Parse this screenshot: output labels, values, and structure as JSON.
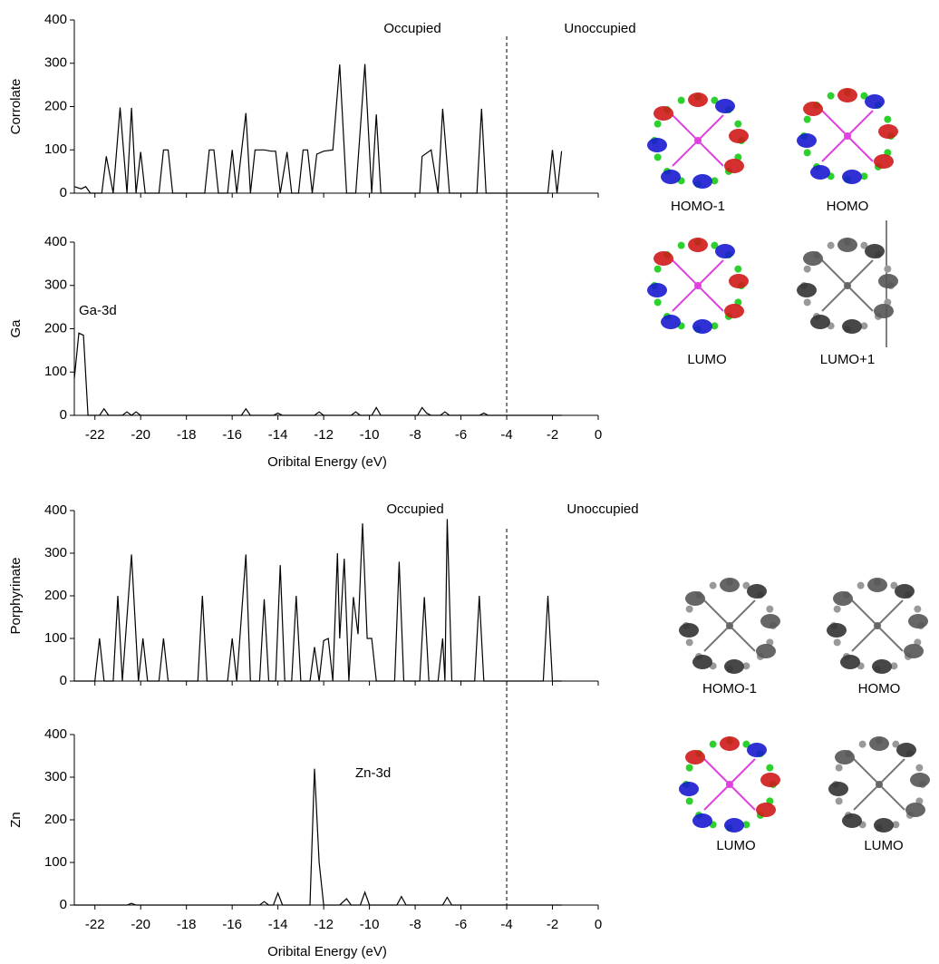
{
  "chart_data": [
    {
      "type": "line",
      "ylabel": "Corrolate",
      "annotations": [
        "Occupied",
        "Unoccupied"
      ],
      "color": "#000000",
      "vline": -4,
      "xlim": [
        -22.9,
        0
      ],
      "xticks": [
        -22,
        -20,
        -18,
        -16,
        -14,
        -12,
        -10,
        -8,
        -6,
        -4,
        -2,
        0
      ],
      "show_xtick_labels": false,
      "ylim": [
        0,
        400
      ],
      "yticks": [
        0,
        100,
        200,
        300,
        400
      ],
      "x": [
        -22.9,
        -22.6,
        -22.4,
        -22.2,
        -21.7,
        -21.5,
        -21.2,
        -20.9,
        -20.6,
        -20.4,
        -20.2,
        -20.0,
        -19.8,
        -19.2,
        -19.0,
        -18.8,
        -18.6,
        -17.2,
        -17.0,
        -16.8,
        -16.6,
        -16.2,
        -16.0,
        -15.8,
        -15.4,
        -15.2,
        -15.0,
        -14.6,
        -14.3,
        -14.1,
        -13.9,
        -13.6,
        -13.4,
        -13.1,
        -12.9,
        -12.7,
        -12.5,
        -12.3,
        -12.0,
        -11.6,
        -11.3,
        -11.0,
        -10.6,
        -10.2,
        -9.9,
        -9.7,
        -9.5,
        -7.8,
        -7.7,
        -7.3,
        -7.0,
        -6.8,
        -6.5,
        -5.3,
        -5.1,
        -4.9,
        -2.2,
        -2.0,
        -1.8,
        -1.6
      ],
      "values": [
        15,
        10,
        15,
        0,
        0,
        85,
        0,
        198,
        0,
        197,
        0,
        95,
        0,
        0,
        100,
        100,
        0,
        0,
        100,
        100,
        0,
        0,
        100,
        0,
        185,
        0,
        100,
        100,
        97,
        97,
        0,
        95,
        0,
        0,
        100,
        100,
        0,
        90,
        97,
        100,
        297,
        0,
        0,
        298,
        0,
        182,
        0,
        0,
        85,
        100,
        0,
        195,
        0,
        0,
        195,
        0,
        0,
        100,
        0,
        97
      ]
    },
    {
      "type": "line",
      "ylabel": "Ga",
      "xlabel": "Oribital Energy (eV)",
      "annotations": [
        "Ga-3d"
      ],
      "color": "#000000",
      "vline": -4,
      "xlim": [
        -22.9,
        0
      ],
      "xticks": [
        -22,
        -20,
        -18,
        -16,
        -14,
        -12,
        -10,
        -8,
        -6,
        -4,
        -2,
        0
      ],
      "show_xtick_labels": true,
      "ylim": [
        0,
        400
      ],
      "yticks": [
        0,
        100,
        200,
        300,
        400
      ],
      "x": [
        -22.9,
        -22.7,
        -22.5,
        -22.3,
        -21.8,
        -21.6,
        -21.4,
        -20.8,
        -20.6,
        -20.4,
        -20.2,
        -20.0,
        -15.6,
        -15.4,
        -15.2,
        -14.2,
        -14.0,
        -13.8,
        -12.4,
        -12.2,
        -12.0,
        -10.8,
        -10.6,
        -10.4,
        -9.9,
        -9.7,
        -9.5,
        -7.9,
        -7.7,
        -7.5,
        -7.3,
        -6.9,
        -6.7,
        -6.5,
        -5.2,
        -5.0,
        -4.8,
        -1.6
      ],
      "values": [
        85,
        190,
        185,
        0,
        0,
        15,
        0,
        0,
        8,
        0,
        8,
        0,
        0,
        15,
        0,
        0,
        5,
        0,
        0,
        8,
        0,
        0,
        8,
        0,
        0,
        18,
        0,
        0,
        18,
        5,
        0,
        0,
        8,
        0,
        0,
        5,
        0,
        0
      ]
    },
    {
      "type": "line",
      "ylabel": "Porphyrinate",
      "annotations": [
        "Occupied",
        "Unoccupied"
      ],
      "color": "#000000",
      "vline": -4,
      "xlim": [
        -22.9,
        0
      ],
      "xticks": [
        -22,
        -20,
        -18,
        -16,
        -14,
        -12,
        -10,
        -8,
        -6,
        -4,
        -2,
        0
      ],
      "show_xtick_labels": false,
      "ylim": [
        0,
        400
      ],
      "yticks": [
        0,
        100,
        200,
        300,
        400
      ],
      "x": [
        -22.9,
        -22.0,
        -21.8,
        -21.6,
        -21.2,
        -21.0,
        -20.8,
        -20.4,
        -20.1,
        -19.9,
        -19.7,
        -19.2,
        -19.0,
        -18.8,
        -17.5,
        -17.3,
        -17.1,
        -16.2,
        -16.0,
        -15.8,
        -15.4,
        -15.2,
        -14.8,
        -14.6,
        -14.4,
        -14.1,
        -13.9,
        -13.7,
        -13.4,
        -13.2,
        -13.0,
        -12.6,
        -12.4,
        -12.2,
        -12.0,
        -11.8,
        -11.6,
        -11.4,
        -11.3,
        -11.1,
        -10.9,
        -10.7,
        -10.5,
        -10.3,
        -10.1,
        -9.9,
        -9.7,
        -8.9,
        -8.7,
        -8.5,
        -7.8,
        -7.6,
        -7.4,
        -7.0,
        -6.8,
        -6.7,
        -6.6,
        -6.4,
        -5.4,
        -5.2,
        -5.0,
        -2.4,
        -2.2,
        -2.0,
        -1.6
      ],
      "values": [
        0,
        0,
        100,
        0,
        0,
        200,
        0,
        297,
        0,
        100,
        0,
        0,
        100,
        0,
        0,
        200,
        0,
        0,
        100,
        0,
        297,
        0,
        0,
        192,
        0,
        0,
        272,
        0,
        0,
        200,
        0,
        0,
        80,
        0,
        95,
        100,
        0,
        300,
        100,
        287,
        0,
        197,
        110,
        370,
        100,
        100,
        0,
        0,
        280,
        0,
        0,
        197,
        0,
        0,
        100,
        0,
        380,
        0,
        0,
        200,
        0,
        0,
        200,
        0,
        0
      ]
    },
    {
      "type": "line",
      "ylabel": "Zn",
      "xlabel": "Oribital Energy (eV)",
      "annotations": [
        "Zn-3d"
      ],
      "color": "#000000",
      "vline": -4,
      "xlim": [
        -22.9,
        0
      ],
      "xticks": [
        -22,
        -20,
        -18,
        -16,
        -14,
        -12,
        -10,
        -8,
        -6,
        -4,
        -2,
        0
      ],
      "show_xtick_labels": true,
      "ylim": [
        0,
        400
      ],
      "yticks": [
        0,
        100,
        200,
        300,
        400
      ],
      "x": [
        -22.9,
        -20.6,
        -20.4,
        -20.2,
        -14.8,
        -14.6,
        -14.4,
        -14.2,
        -14.0,
        -13.8,
        -12.6,
        -12.4,
        -12.2,
        -12.0,
        -11.3,
        -11.0,
        -10.8,
        -10.4,
        -10.2,
        -10.0,
        -8.8,
        -8.6,
        -8.4,
        -6.8,
        -6.6,
        -6.4,
        -1.6
      ],
      "values": [
        0,
        0,
        4,
        0,
        0,
        8,
        0,
        0,
        28,
        0,
        0,
        320,
        100,
        0,
        0,
        15,
        0,
        0,
        30,
        0,
        0,
        20,
        0,
        0,
        18,
        0,
        0
      ]
    }
  ],
  "orbital_labels": {
    "top": [
      "HOMO-1",
      "HOMO",
      "LUMO",
      "LUMO+1"
    ],
    "bottom": [
      "HOMO-1",
      "HOMO",
      "LUMO",
      "LUMO"
    ]
  }
}
